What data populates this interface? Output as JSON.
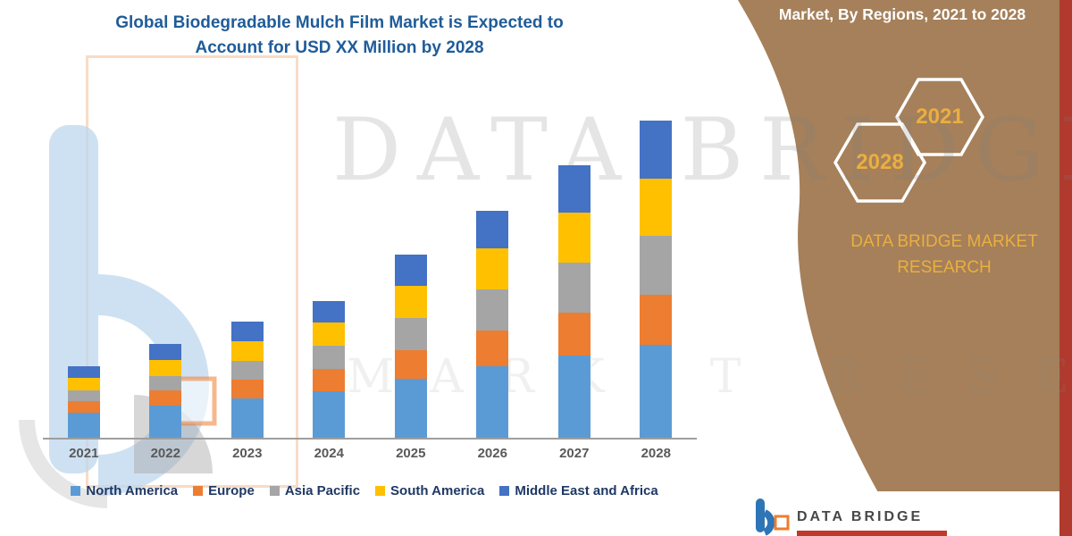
{
  "header": {
    "title_line1": "Global Biodegradable Mulch Film Market is Expected to",
    "title_line2": "Account for USD XX Million by 2028"
  },
  "right_panel": {
    "heading": "Market, By Regions, 2021 to 2028",
    "hexagon_years": [
      "2028",
      "2021"
    ],
    "brand_text_line1": "DATA BRIDGE MARKET",
    "brand_text_line2": "RESEARCH",
    "panel_color": "#A5805A",
    "gold_color": "#EBAE3F",
    "edge_strip_color": "#B03A2E"
  },
  "watermark": {
    "primary": "DATA BRIDGE",
    "secondary": "MARKET RESEARCH"
  },
  "footer": {
    "brand": "DATA BRIDGE"
  },
  "colors": {
    "title_blue": "#1F5C99",
    "legend_text": "#1F3864",
    "axis_gray": "#9E9E9E"
  },
  "chart_data": {
    "type": "bar",
    "stacked": true,
    "title": "Global Biodegradable Mulch Film Market is Expected to Account for USD XX Million by 2028",
    "xlabel": "",
    "ylabel": "",
    "value_axis_visible": false,
    "grid": false,
    "legend_position": "bottom",
    "values_estimated": true,
    "ylim": [
      0,
      360
    ],
    "categories": [
      "2021",
      "2022",
      "2023",
      "2024",
      "2025",
      "2026",
      "2027",
      "2028"
    ],
    "series": [
      {
        "name": "North America",
        "color": "#5B9BD5",
        "values": [
          28,
          36,
          44,
          52,
          66,
          80,
          92,
          104
        ]
      },
      {
        "name": "Europe",
        "color": "#ED7D31",
        "values": [
          13,
          17,
          21,
          25,
          32,
          40,
          48,
          56
        ]
      },
      {
        "name": "Asia Pacific",
        "color": "#A5A5A5",
        "values": [
          12,
          16,
          21,
          26,
          36,
          46,
          56,
          66
        ]
      },
      {
        "name": "South America",
        "color": "#FFC000",
        "values": [
          14,
          18,
          22,
          26,
          36,
          46,
          56,
          64
        ]
      },
      {
        "name": "Middle East and Africa",
        "color": "#4472C4",
        "values": [
          13,
          18,
          22,
          24,
          35,
          42,
          53,
          65
        ]
      }
    ]
  }
}
